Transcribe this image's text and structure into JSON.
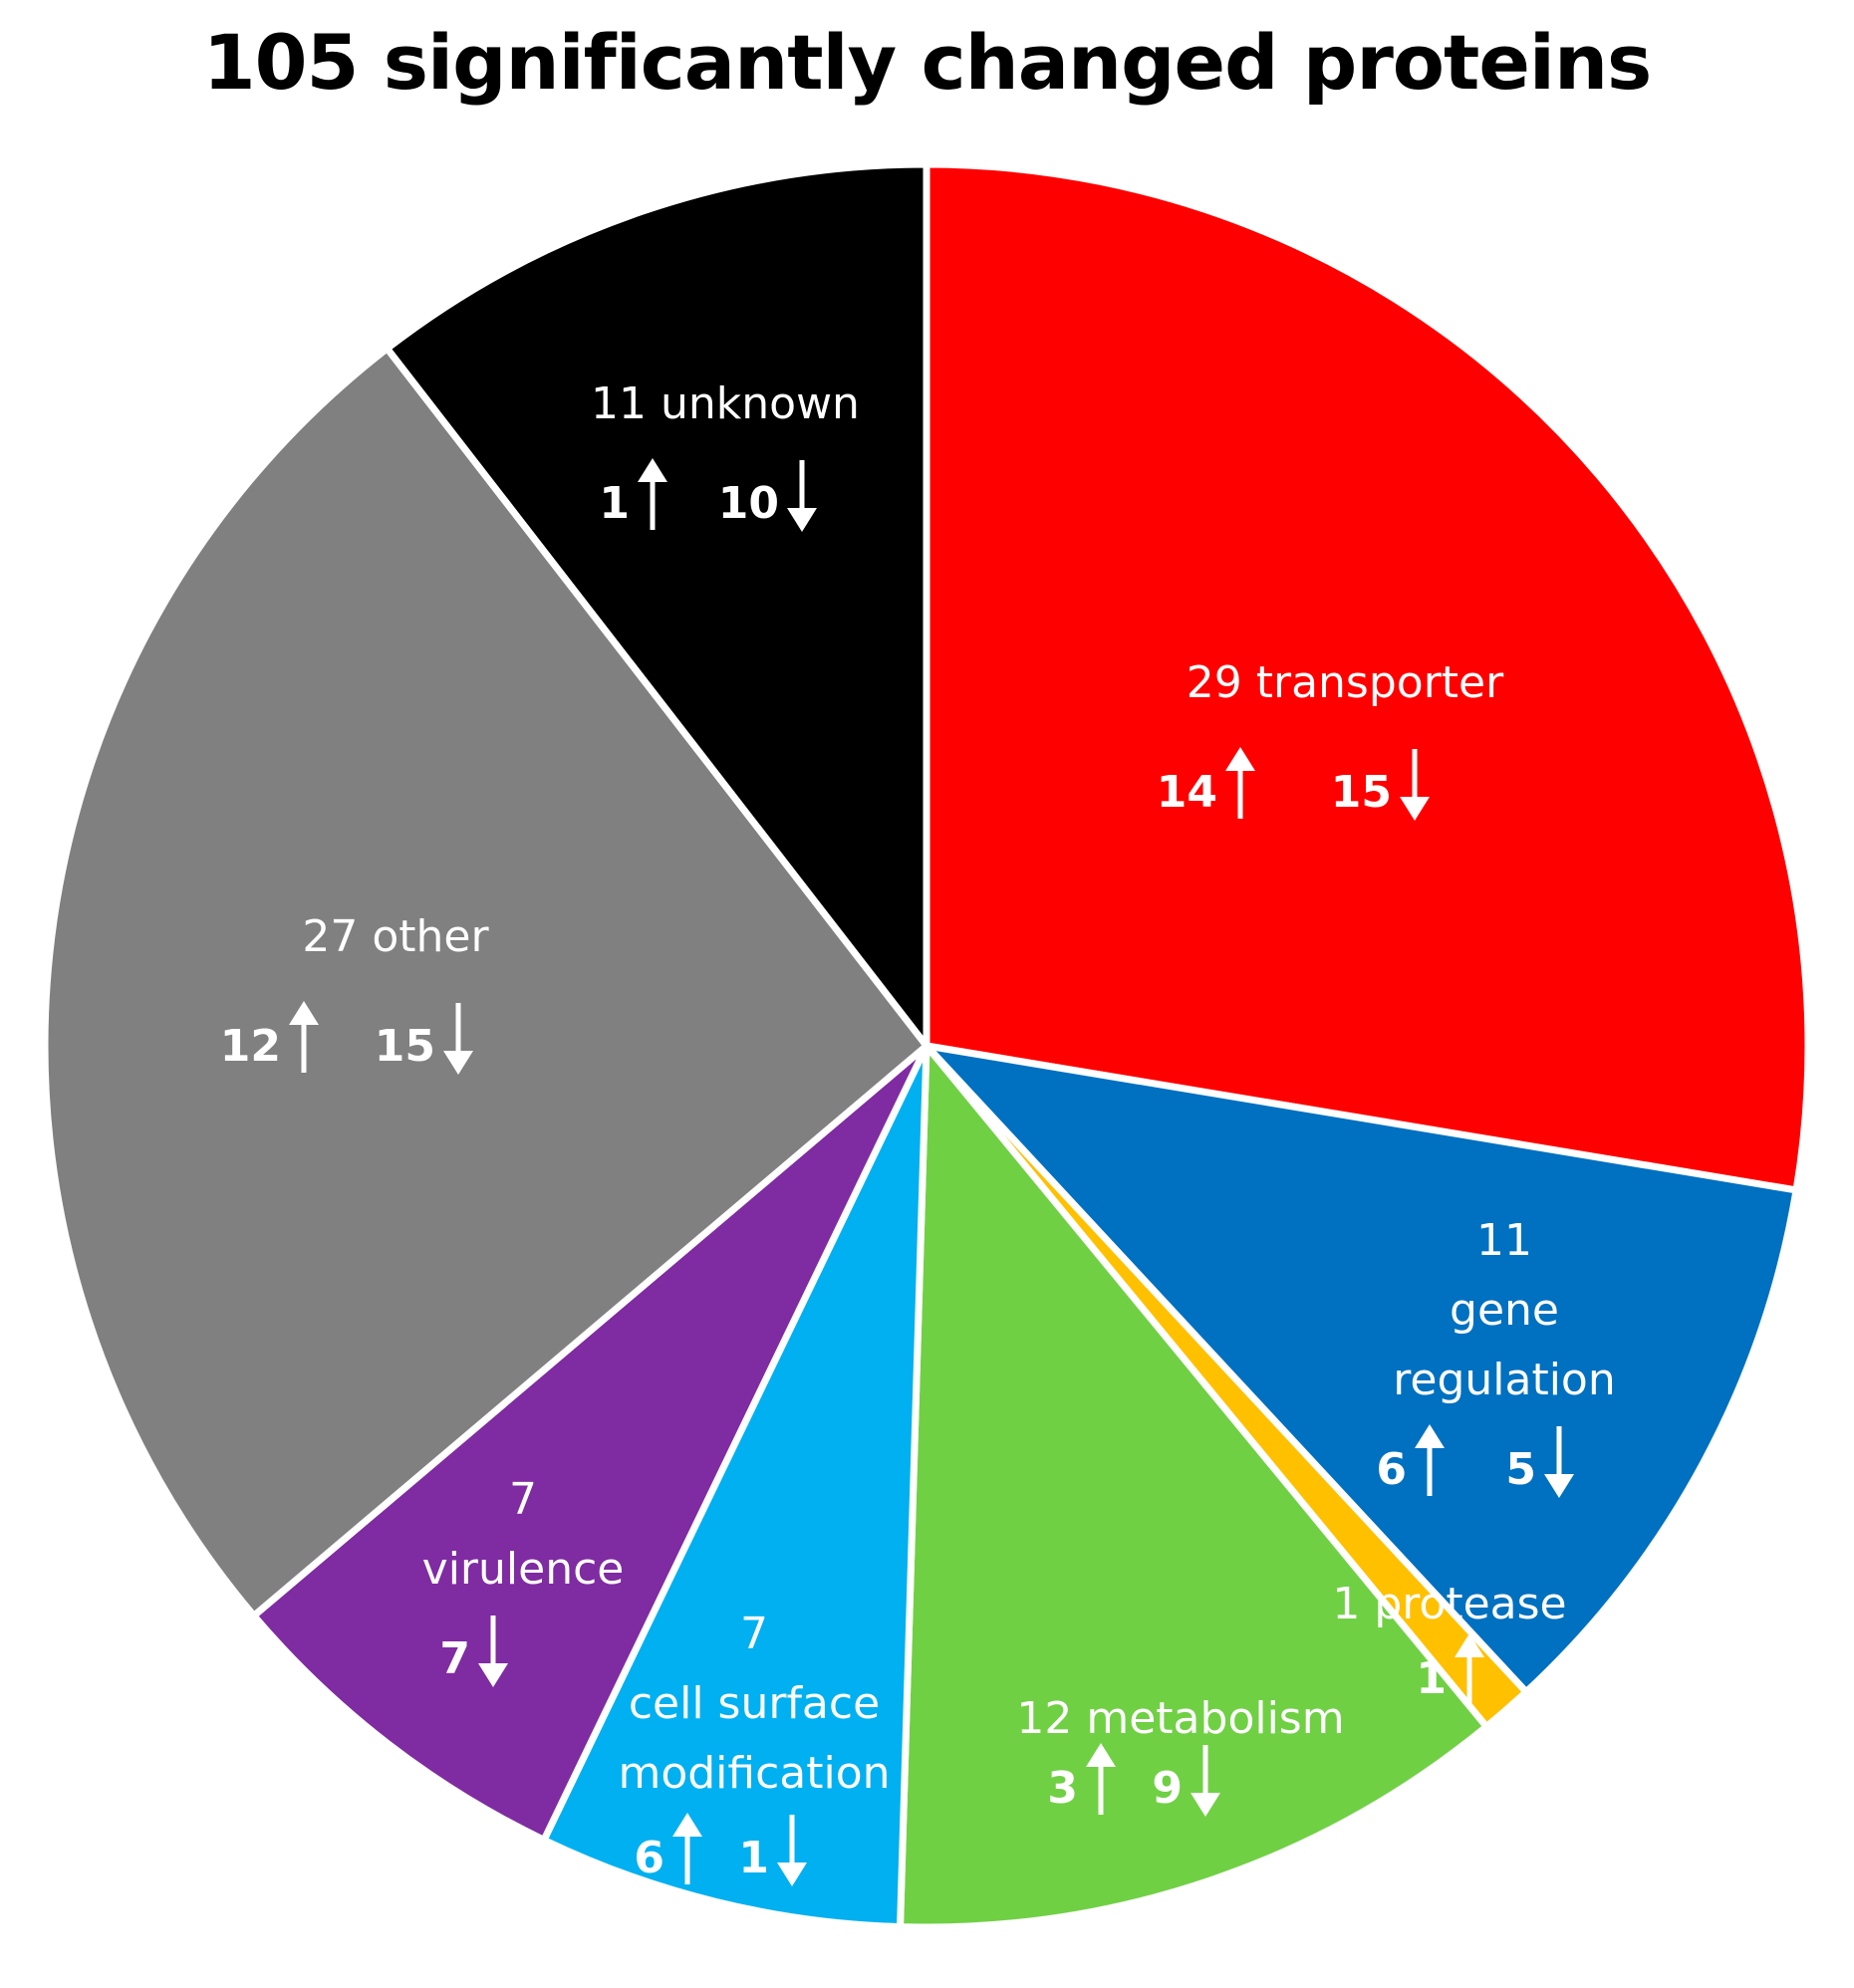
{
  "chart_data": {
    "type": "pie",
    "title": "105 significantly changed proteins",
    "slices": [
      {
        "label": "transporter",
        "value": 29,
        "up": 14,
        "down": 15,
        "color": "#ff0000",
        "text": {
          "total": "29 transporter",
          "up": "14",
          "down": "15"
        }
      },
      {
        "label": "gene regulation",
        "value": 11,
        "up": 6,
        "down": 5,
        "color": "#0070c0",
        "text": {
          "total": "11",
          "line2": "gene",
          "line3": "regulation",
          "up": "6",
          "down": "5"
        }
      },
      {
        "label": "protease",
        "value": 1,
        "up": 1,
        "down": 0,
        "color": "#ffc000",
        "text": {
          "total": "1 protease",
          "up": "1"
        }
      },
      {
        "label": "metabolism",
        "value": 12,
        "up": 3,
        "down": 9,
        "color": "#70d044",
        "text": {
          "total": "12 metabolism",
          "up": "3",
          "down": "9"
        }
      },
      {
        "label": "cell surface modification",
        "value": 7,
        "up": 6,
        "down": 1,
        "color": "#00b0f0",
        "text": {
          "total": "7",
          "line2": "cell surface",
          "line3": "modification",
          "up": "6",
          "down": "1"
        }
      },
      {
        "label": "virulence",
        "value": 7,
        "up": 0,
        "down": 7,
        "color": "#7f2ba1",
        "text": {
          "total": "7",
          "line2": "virulence",
          "down": "7"
        }
      },
      {
        "label": "other",
        "value": 27,
        "up": 12,
        "down": 15,
        "color": "#808080",
        "text": {
          "total": "27 other",
          "up": "12",
          "down": "15"
        }
      },
      {
        "label": "unknown",
        "value": 11,
        "up": 1,
        "down": 10,
        "color": "#000000",
        "text": {
          "total": "11 unknown",
          "up": "1",
          "down": "10"
        }
      }
    ],
    "start_angle": "12 o'clock",
    "direction": "clockwise"
  }
}
